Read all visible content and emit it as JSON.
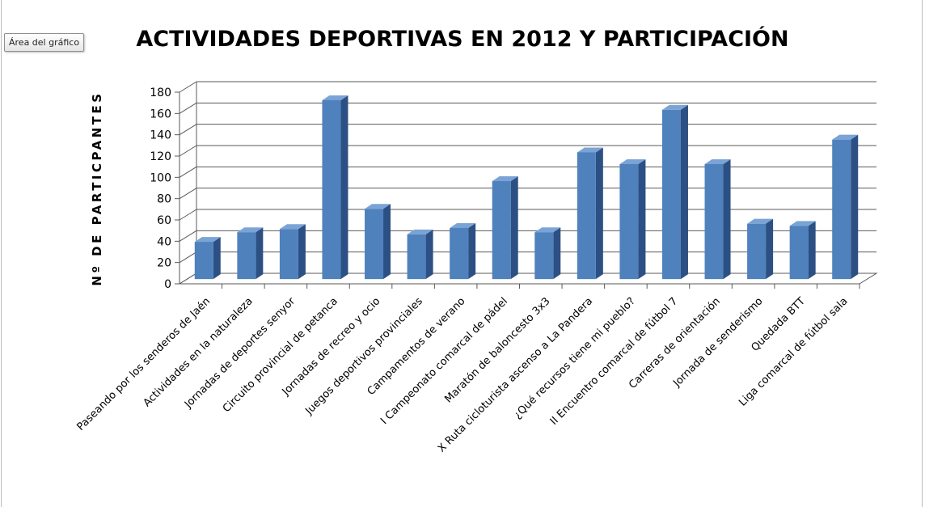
{
  "ui": {
    "tooltip": "Área del gráfico"
  },
  "chart_data": {
    "type": "bar",
    "title": "ACTIVIDADES DEPORTIVAS EN 2012 Y PARTICIPACIÓN",
    "xlabel": "",
    "ylabel": "Nº DE PARTICPANTES",
    "ylim": [
      0,
      180
    ],
    "yticks": [
      0,
      20,
      40,
      60,
      80,
      100,
      120,
      140,
      160,
      180
    ],
    "grid": true,
    "legend": "none",
    "style": "3d-column",
    "colors": {
      "bar_front": "#4f81bd",
      "bar_side": "#2c5083",
      "bar_top": "#7aa3d6",
      "grid": "#595959"
    },
    "categories": [
      "Paseando por los senderos de Jaén",
      "Actividades en la naturaleza",
      "Jornadas de deportes senyor",
      "Circuito provincial de petanca",
      "Jornadas de recreo y ocio",
      "Juegos deportivos provinciales",
      "Campamentos de verano",
      "I Campeonato comarcal de pádel",
      "Maratón de baloncesto 3x3",
      "X Ruta cicloturista ascenso a La Pandera",
      "¿Qué recursos tiene mi pueblo?",
      "II Encuentro comarcal de fútbol 7",
      "Carreras de orientación",
      "Jornada de senderismo",
      "Quedada BTT",
      "Liga comarcal de fútbol sala"
    ],
    "values": [
      35,
      44,
      47,
      168,
      66,
      42,
      48,
      92,
      44,
      119,
      108,
      159,
      108,
      52,
      50,
      131
    ]
  }
}
